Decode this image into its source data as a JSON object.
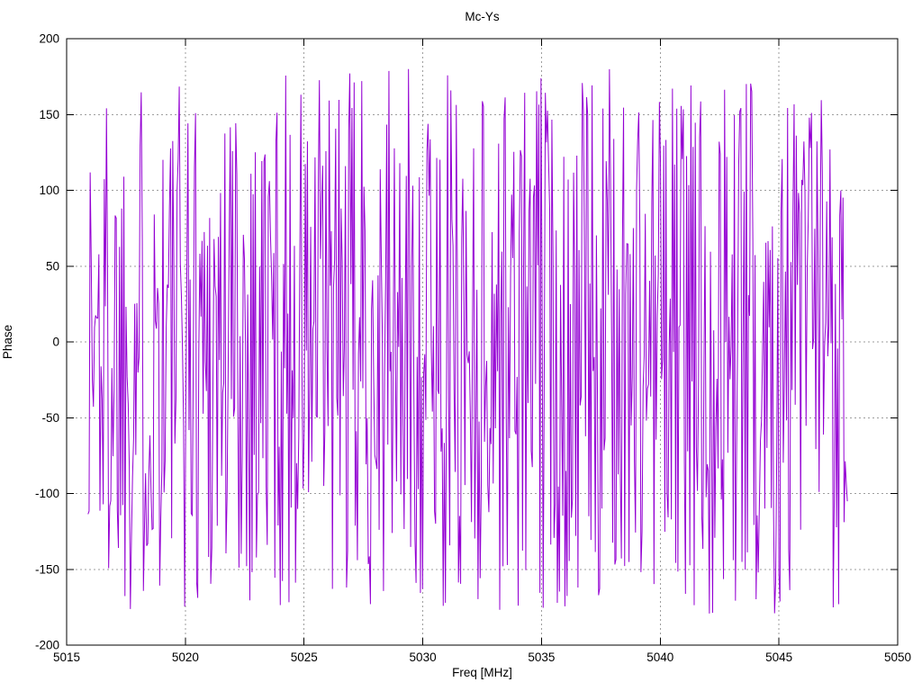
{
  "figure": {
    "background": "#ffffff",
    "text_color": "#000000"
  },
  "chart_data": {
    "type": "line",
    "title": "Mc-Ys",
    "xlabel": "Freq [MHz]",
    "ylabel": "Phase",
    "xlim": [
      5015,
      5050
    ],
    "ylim": [
      -200,
      200
    ],
    "xticks": [
      5015,
      5020,
      5025,
      5030,
      5035,
      5040,
      5045,
      5050
    ],
    "yticks": [
      -200,
      -150,
      -100,
      -50,
      0,
      50,
      100,
      150,
      200
    ],
    "grid": true,
    "grid_style": "dotted",
    "grid_color": "#9e9e9e",
    "border_color": "#000000",
    "tick_length": 8,
    "legend_position": "none",
    "series": [
      {
        "name": "Mc-Ys",
        "color": "#9400D3",
        "line_width": 1,
        "x_start": 5015.9,
        "x_end": 5047.88,
        "n_points": 700,
        "y_min_observed": -180,
        "y_max_observed": 180,
        "y_model": "wrapped interferometric phase, approximately uniform random in [-180, 180] degrees versus frequency",
        "prng_seed": 1337
      }
    ]
  }
}
